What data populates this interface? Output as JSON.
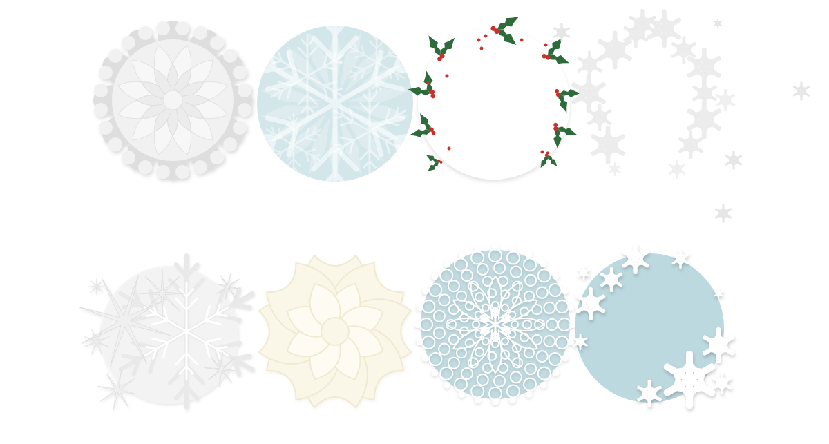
{
  "gallery": {
    "rows": [
      {
        "tiles": [
          {
            "id": "t1",
            "style": "layered-paper-snowflake",
            "colors": {
              "main": "#f1f1f1",
              "shade": "#dedede"
            }
          },
          {
            "id": "t2",
            "style": "snowflake-pattern-circle",
            "colors": {
              "bg": "#d3e6ea",
              "fg": "#ffffff"
            }
          },
          {
            "id": "t3",
            "style": "holly-frame-circle",
            "colors": {
              "leaf": "#2e6b3a",
              "berry": "#c9302c"
            }
          },
          {
            "id": "t4",
            "style": "snowflake-wreath",
            "colors": {
              "main": "#e9e9e9"
            }
          }
        ]
      },
      {
        "tiles": [
          {
            "id": "t5",
            "style": "star-snowflake-burst",
            "colors": {
              "main": "#f0f0f0"
            }
          },
          {
            "id": "t6",
            "style": "cream-paper-snowflake",
            "colors": {
              "main": "#fbf7e8",
              "shade": "#f0ead2"
            }
          },
          {
            "id": "t7",
            "style": "lace-doily-circle",
            "colors": {
              "bg": "#c2dce2",
              "fg": "#ffffff"
            }
          },
          {
            "id": "t8",
            "style": "blue-circle-snowflake-border",
            "colors": {
              "bg": "#bcd9df",
              "fg": "#ffffff"
            }
          }
        ]
      }
    ]
  }
}
